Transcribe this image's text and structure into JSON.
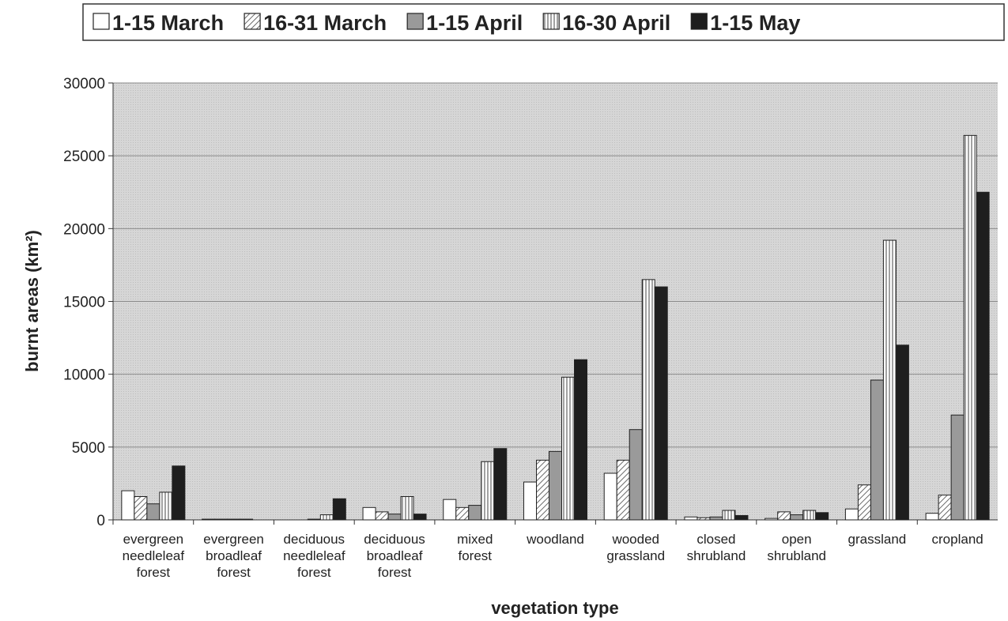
{
  "chart_data": {
    "type": "bar",
    "x_label": "vegetation type",
    "y_label": "burnt areas (km²)",
    "categories": [
      "evergreen needleleaf forest",
      "evergreen broadleaf forest",
      "deciduous needleleaf forest",
      "deciduous broadleaf forest",
      "mixed forest",
      "woodland",
      "wooded grassland",
      "closed shrubland",
      "open shrubland",
      "grassland",
      "cropland"
    ],
    "series": [
      {
        "name": "1-15 March",
        "color": "#ffffff",
        "values": [
          2000,
          50,
          0,
          850,
          1400,
          2600,
          3200,
          200,
          100,
          750,
          450
        ]
      },
      {
        "name": "16-31 March",
        "color": "#ffffff",
        "pattern": "diagonal",
        "values": [
          1600,
          50,
          0,
          550,
          850,
          4100,
          4100,
          150,
          550,
          2400,
          1700
        ]
      },
      {
        "name": "1-15 April",
        "color": "#9a9a9a",
        "values": [
          1100,
          50,
          50,
          400,
          1000,
          4700,
          6200,
          200,
          350,
          9600,
          7200
        ]
      },
      {
        "name": "16-30 April",
        "color": "#ffffff",
        "pattern": "vertical",
        "values": [
          1900,
          50,
          350,
          1600,
          4000,
          9800,
          16500,
          650,
          650,
          19200,
          26400
        ]
      },
      {
        "name": "1-15 May",
        "color": "#1e1e1e",
        "values": [
          3700,
          0,
          1450,
          400,
          4900,
          11000,
          16000,
          300,
          500,
          12000,
          22500
        ]
      }
    ],
    "ylim": [
      0,
      30000
    ],
    "yticks": [
      0,
      5000,
      10000,
      15000,
      20000,
      25000,
      30000
    ],
    "grid": true,
    "legend": "top"
  }
}
